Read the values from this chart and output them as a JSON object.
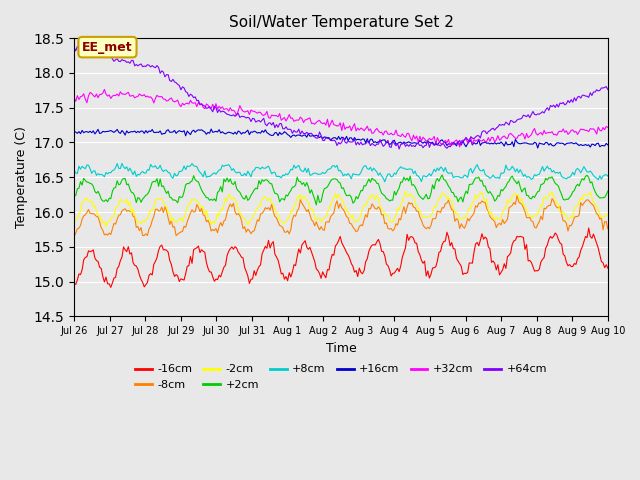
{
  "title": "Soil/Water Temperature Set 2",
  "xlabel": "Time",
  "ylabel": "Temperature (C)",
  "ylim": [
    14.5,
    18.5
  ],
  "annotation_text": "EE_met",
  "annotation_bg": "#ffffc0",
  "annotation_border": "#c8a000",
  "annotation_text_color": "#8b0000",
  "bg_color": "#e8e8e8",
  "plot_bg": "#e8e8e8",
  "series": [
    {
      "label": "-16cm",
      "color": "#ff0000"
    },
    {
      "label": "-8cm",
      "color": "#ff8000"
    },
    {
      "label": "-2cm",
      "color": "#ffff00"
    },
    {
      "label": "+2cm",
      "color": "#00cc00"
    },
    {
      "label": "+8cm",
      "color": "#00cccc"
    },
    {
      "label": "+16cm",
      "color": "#0000cc"
    },
    {
      "label": "+32cm",
      "color": "#ff00ff"
    },
    {
      "label": "+64cm",
      "color": "#8000ff"
    }
  ],
  "xtick_labels": [
    "Jul 26",
    "Jul 27",
    "Jul 28",
    "Jul 29",
    "Jul 30",
    "Jul 31",
    "Aug 1",
    "Aug 2",
    "Aug 3",
    "Aug 4",
    "Aug 5",
    "Aug 6",
    "Aug 7",
    "Aug 8",
    "Aug 9",
    "Aug 10"
  ],
  "n_points": 336
}
